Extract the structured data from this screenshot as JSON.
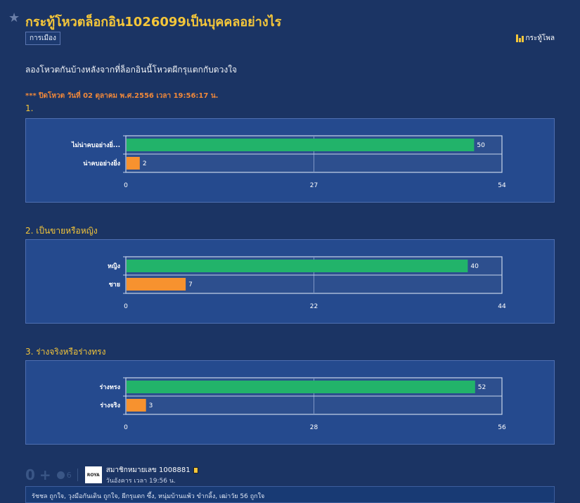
{
  "topic": {
    "title": "กระทู้โหวตล็อกอิน1026099เป็นบุคคลอย่างไร",
    "tag": "การเมือง",
    "forum_type_label": "กระทู้โพล",
    "description": "ลองโหวตกันบ้างหลังจากที่ล็อกอินนี้โหวตผีกรุแตกกับดวงใจ",
    "closed_note": "*** ปิดโหวต วันที่ 02 ตุลาคม พ.ศ.2556 เวลา 19:56:17 น."
  },
  "questions": [
    {
      "label": "1."
    },
    {
      "label": "2. เป็นขายหรือหญิง"
    },
    {
      "label": "3. ร่างจริงหรือร่างทรง"
    }
  ],
  "chart_data": [
    {
      "type": "bar",
      "orientation": "horizontal",
      "categories": [
        "ไม่น่าคบอย่างยิ่...",
        "น่าคบอย่างยิ่ง"
      ],
      "values": [
        50,
        2
      ],
      "bar_colors": [
        "#22b36a",
        "#f7922f"
      ],
      "xlim": [
        0,
        54
      ],
      "xticks": [
        "0",
        "27",
        "54"
      ],
      "grid": true
    },
    {
      "type": "bar",
      "orientation": "horizontal",
      "categories": [
        "หญิง",
        "ชาย"
      ],
      "values": [
        40,
        7
      ],
      "bar_colors": [
        "#22b36a",
        "#f7922f"
      ],
      "xlim": [
        0,
        44
      ],
      "xticks": [
        "0",
        "22",
        "44"
      ],
      "grid": true
    },
    {
      "type": "bar",
      "orientation": "horizontal",
      "categories": [
        "ร่างทรง",
        "ร่างจริง"
      ],
      "values": [
        52,
        3
      ],
      "bar_colors": [
        "#22b36a",
        "#f7922f"
      ],
      "xlim": [
        0,
        56
      ],
      "xticks": [
        "0",
        "28",
        "56"
      ],
      "grid": true
    }
  ],
  "footer": {
    "vote_count": "0",
    "emotion_count": "6",
    "avatar_text": "ROYA",
    "author": "สมาชิกหมายเลข 1008881",
    "time": "วันอังคาร เวลา 19:56 น.",
    "likes": "รัชชล ถูกใจ, วุงมือกันเดิน ถูกใจ, ผีกรุแตก ซึ้ง, หนุ่มบ้านแพ้ว ขำกลิ้ง, เฒ่าวัย 56 ถูกใจ"
  },
  "colors": {
    "background": "#1b3464",
    "title": "#f4c63a",
    "chart_bg": "#254a8e",
    "plot_bg": "#2d4f8e",
    "accent_orange": "#f0883a"
  }
}
